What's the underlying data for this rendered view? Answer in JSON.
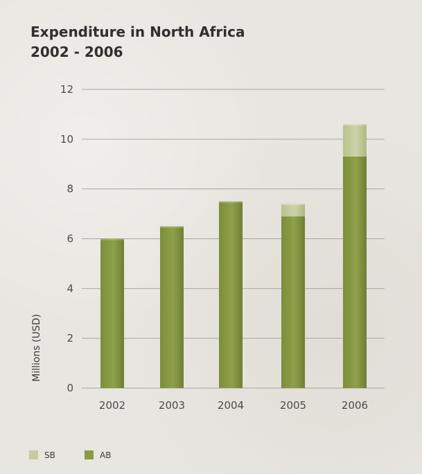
{
  "chart_data": {
    "type": "bar",
    "stacked": true,
    "title": "Expenditure in North Africa",
    "subtitle": "2002 - 2006",
    "ylabel": "Millions (USD)",
    "xlabel": "",
    "categories": [
      "2002",
      "2003",
      "2004",
      "2005",
      "2006"
    ],
    "ylim": [
      0,
      12
    ],
    "yticks": [
      "0",
      "2",
      "4",
      "6",
      "8",
      "10",
      "12"
    ],
    "grid": true,
    "legend_position": "bottom-left",
    "series": [
      {
        "name": "AB",
        "color": "#8a9a45",
        "values": [
          6.0,
          6.5,
          7.5,
          6.9,
          9.3
        ]
      },
      {
        "name": "SB",
        "color": "#c4cca0",
        "values": [
          0,
          0,
          0,
          0.5,
          1.3
        ]
      }
    ]
  }
}
